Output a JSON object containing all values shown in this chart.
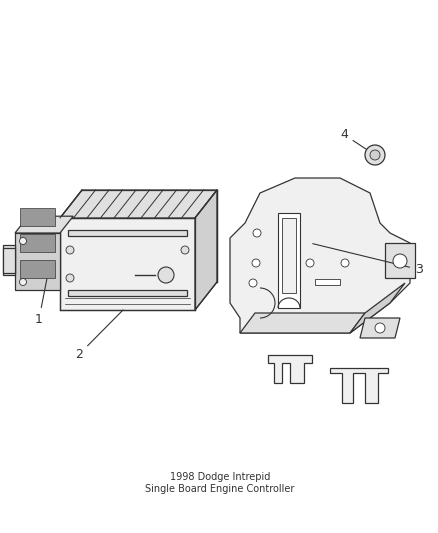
{
  "title": "1998 Dodge Intrepid\nSingle Board Engine Controller",
  "background_color": "#ffffff",
  "fig_width": 4.39,
  "fig_height": 5.33,
  "dpi": 100,
  "line_color": "#333333",
  "light_gray": "#cccccc",
  "mid_gray": "#aaaaaa",
  "dark_gray": "#888888",
  "label_fontsize": 9,
  "label_color": "#333333"
}
